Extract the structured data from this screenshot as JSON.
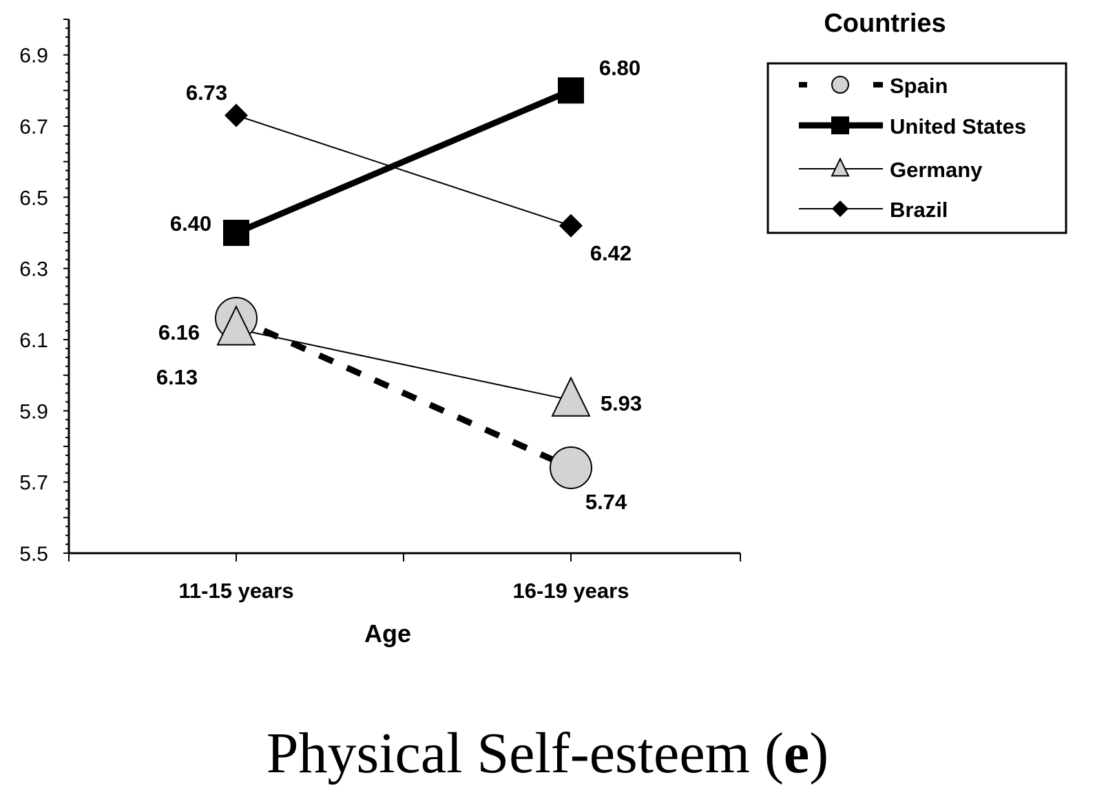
{
  "chart_data": {
    "type": "line",
    "categories": [
      "11-15 years",
      "16-19 years"
    ],
    "xlabel": "Age",
    "ylabel": "",
    "ylim": [
      5.5,
      7.0
    ],
    "yticks": [
      5.5,
      5.7,
      5.9,
      6.1,
      6.3,
      6.5,
      6.7,
      6.9
    ],
    "legend_title": "Countries",
    "legend_position": "top-right",
    "series": [
      {
        "name": "Spain",
        "values": [
          6.16,
          5.74
        ],
        "labels": [
          "6.16",
          "5.74"
        ],
        "marker": "circle",
        "line": "dashed-thick",
        "color": "#d3d3d3"
      },
      {
        "name": "United States",
        "values": [
          6.4,
          6.8
        ],
        "labels": [
          "6.40",
          "6.80"
        ],
        "marker": "square",
        "line": "thick",
        "color": "#000000"
      },
      {
        "name": "Germany",
        "values": [
          6.13,
          5.93
        ],
        "labels": [
          "6.13",
          "5.93"
        ],
        "marker": "triangle",
        "line": "thin",
        "color": "#d3d3d3"
      },
      {
        "name": "Brazil",
        "values": [
          6.73,
          6.42
        ],
        "labels": [
          "6.73",
          "6.42"
        ],
        "marker": "diamond",
        "line": "thin",
        "color": "#000000"
      }
    ]
  },
  "caption": {
    "main": "Physical Self-esteem (",
    "letter": "e",
    "close": ")"
  }
}
